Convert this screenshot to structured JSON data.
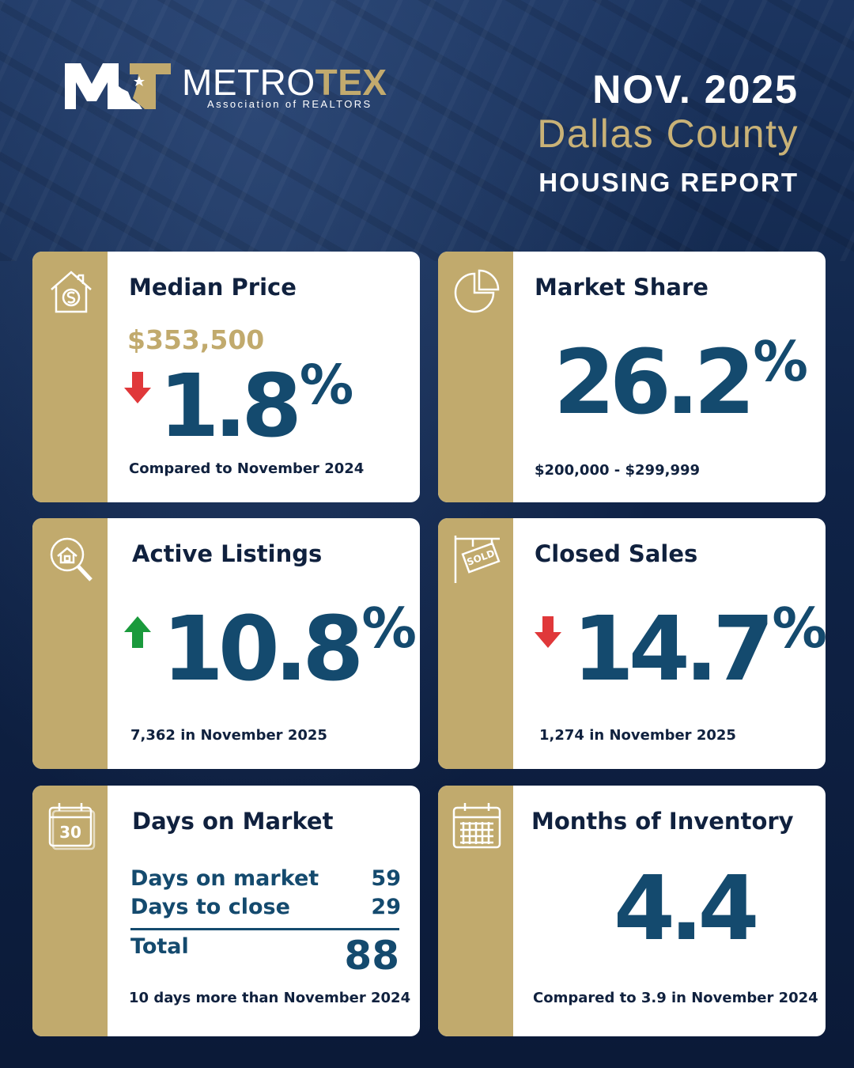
{
  "header": {
    "brand_part1": "METRO",
    "brand_part2": "TEX",
    "brand_sub": "Association of REALTORS",
    "date": "NOV. 2025",
    "county": "Dallas County",
    "report": "HOUSING REPORT"
  },
  "colors": {
    "gold": "#c1aa6d",
    "navy": "#10213e",
    "value_blue": "#144a6e",
    "up_green": "#1a9a3c",
    "down_red": "#e0383a"
  },
  "cards": {
    "median_price": {
      "icon": "house-dollar-icon",
      "title": "Median Price",
      "price": "$353,500",
      "trend": "down",
      "value": "1.8",
      "unit": "%",
      "note": "Compared to November 2024"
    },
    "market_share": {
      "icon": "pie-chart-icon",
      "title": "Market Share",
      "value": "26.2",
      "unit": "%",
      "note": "$200,000 - $299,999"
    },
    "active_listings": {
      "icon": "house-search-icon",
      "title": "Active Listings",
      "trend": "up",
      "value": "10.8",
      "unit": "%",
      "note": "7,362 in November 2025"
    },
    "closed_sales": {
      "icon": "sold-sign-icon",
      "title": "Closed Sales",
      "trend": "down",
      "value": "14.7",
      "unit": "%",
      "note": "1,274 in November 2025"
    },
    "days_on_market": {
      "icon": "calendar-30-icon",
      "calendar_number": "30",
      "title": "Days on Market",
      "rows": [
        {
          "label": "Days on market",
          "value": "59"
        },
        {
          "label": "Days to close",
          "value": "29"
        }
      ],
      "total_label": "Total",
      "total_value": "88",
      "note": "10 days more than November 2024"
    },
    "months_inventory": {
      "icon": "calendar-grid-icon",
      "title": "Months of Inventory",
      "value": "4.4",
      "note": "Compared to 3.9 in November 2024"
    }
  }
}
